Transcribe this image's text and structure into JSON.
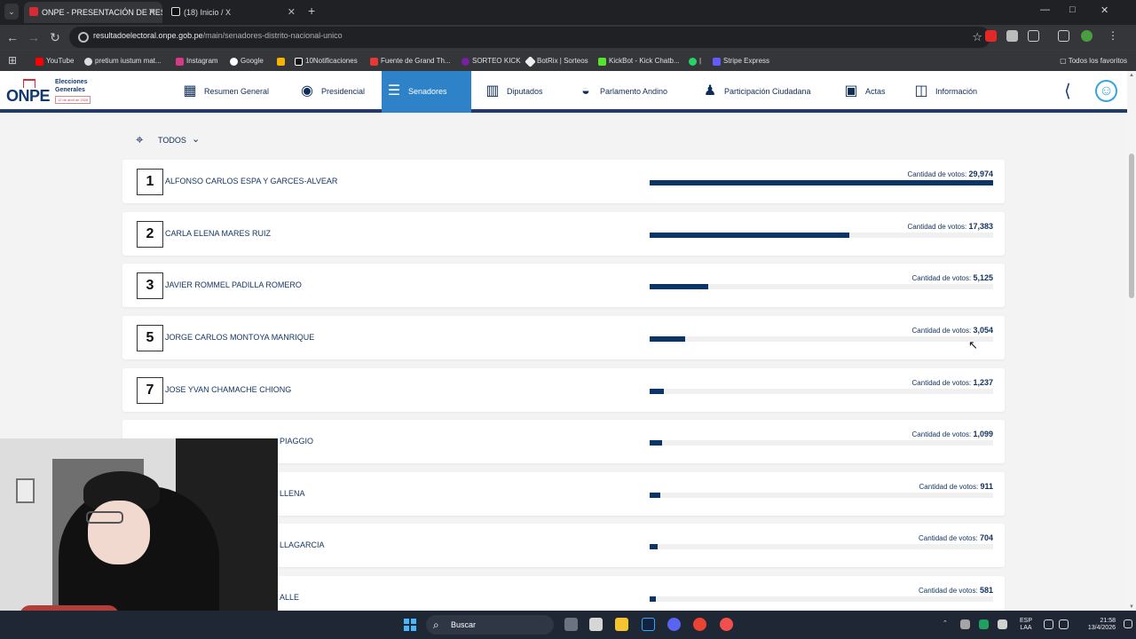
{
  "browser": {
    "active_tab_title": "ONPE - PRESENTACIÓN DE RES",
    "second_tab_title": "(18) Inicio / X",
    "url_host": "resultadoelectoral.onpe.gob.pe",
    "url_path": "/main/senadores-distrito-nacional-unico",
    "bookmarks": [
      "YouTube",
      "pretium iustum mat...",
      "Instagram",
      "Google",
      "10Notificaciones",
      "Fuente de Grand Th...",
      "SORTEO KICK",
      "BotRix | Sorteos",
      "KickBot - Kick Chatb...",
      "|",
      "Stripe Express"
    ],
    "all_bookmarks": "Todos los favoritos"
  },
  "site": {
    "logo_abbr": "ONPE",
    "logo_title_line1": "Elecciones",
    "logo_title_line2": "Generales",
    "logo_date": "12 de abril de 2026",
    "nav": [
      "Resumen General",
      "Presidencial",
      "Senadores",
      "Diputados",
      "Parlamento Andino",
      "Participación Ciudadana",
      "Actas",
      "Información"
    ]
  },
  "filter": {
    "label": "TODOS"
  },
  "results": {
    "votes_label": "Cantidad de votos:",
    "rows": [
      {
        "rank": "1",
        "name": "ALFONSO CARLOS ESPA Y GARCES-ALVEAR",
        "votes": "29,974",
        "fraction": 1.0
      },
      {
        "rank": "2",
        "name": "CARLA ELENA MARES RUIZ",
        "votes": "17,383",
        "fraction": 0.58
      },
      {
        "rank": "3",
        "name": "JAVIER ROMMEL PADILLA ROMERO",
        "votes": "5,125",
        "fraction": 0.171
      },
      {
        "rank": "5",
        "name": "JORGE CARLOS MONTOYA MANRIQUE",
        "votes": "3,054",
        "fraction": 0.102
      },
      {
        "rank": "7",
        "name": "JOSE YVAN CHAMACHE CHIONG",
        "votes": "1,237",
        "fraction": 0.041
      },
      {
        "rank": "",
        "name": "PIAGGIO",
        "votes": "1,099",
        "fraction": 0.037
      },
      {
        "rank": "",
        "name": "LLENA",
        "votes": "911",
        "fraction": 0.03
      },
      {
        "rank": "",
        "name": "LLAGARCIA",
        "votes": "704",
        "fraction": 0.023
      },
      {
        "rank": "",
        "name": "ALLE",
        "votes": "581",
        "fraction": 0.019
      }
    ]
  },
  "taskbar": {
    "search": "Buscar",
    "language": "ESP",
    "region": "LAA",
    "time": "21:58",
    "date": "13/4/2026"
  }
}
